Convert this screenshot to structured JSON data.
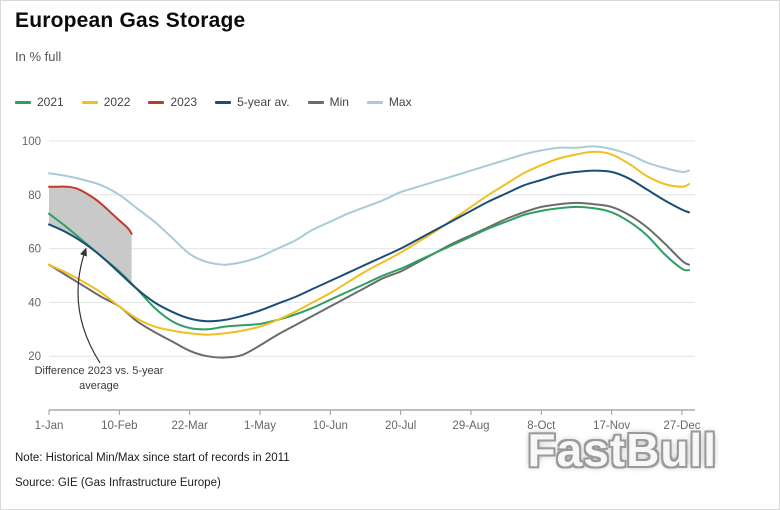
{
  "page": {
    "title": "European Gas Storage",
    "subtitle": "In % full"
  },
  "notes": {
    "note": "Note: Historical Min/Max since start of records in 2011",
    "source": "Source: GIE (Gas Infrastructure Europe)"
  },
  "watermark": "FastBull",
  "chart_data": {
    "type": "line",
    "title": "European Gas Storage",
    "subtitle": "In % full",
    "x_unit": "day_of_year",
    "xlim": [
      1,
      365
    ],
    "ylim": [
      0,
      100
    ],
    "grid": "horizontal",
    "legend_position": "top",
    "y_ticks": [
      20,
      40,
      60,
      80,
      100
    ],
    "x_ticks": [
      {
        "day": 1,
        "label": "1-Jan"
      },
      {
        "day": 41,
        "label": "10-Feb"
      },
      {
        "day": 81,
        "label": "22-Mar"
      },
      {
        "day": 121,
        "label": "1-May"
      },
      {
        "day": 161,
        "label": "10-Jun"
      },
      {
        "day": 201,
        "label": "20-Jul"
      },
      {
        "day": 241,
        "label": "29-Aug"
      },
      {
        "day": 281,
        "label": "8-Oct"
      },
      {
        "day": 321,
        "label": "17-Nov"
      },
      {
        "day": 361,
        "label": "27-Dec"
      }
    ],
    "series": [
      {
        "name": "2021",
        "color": "#2f9e62",
        "x": [
          1,
          11,
          21,
          31,
          41,
          51,
          61,
          71,
          81,
          91,
          101,
          111,
          121,
          131,
          141,
          151,
          161,
          171,
          181,
          191,
          201,
          211,
          221,
          231,
          241,
          251,
          261,
          271,
          281,
          291,
          301,
          311,
          321,
          331,
          341,
          351,
          361,
          365
        ],
        "y": [
          73,
          68,
          62.5,
          57,
          51.5,
          45,
          38,
          33,
          30.5,
          30,
          31,
          31.5,
          32,
          33.5,
          35.5,
          38,
          41,
          44,
          47,
          50,
          52.5,
          55.5,
          58.5,
          61.5,
          64.5,
          67.5,
          70,
          72.5,
          74,
          75,
          75.5,
          75,
          73.5,
          70,
          65,
          58,
          52.5,
          52
        ]
      },
      {
        "name": "2022",
        "color": "#f0c020",
        "x": [
          1,
          11,
          21,
          31,
          41,
          51,
          61,
          71,
          81,
          91,
          101,
          111,
          121,
          131,
          141,
          151,
          161,
          171,
          181,
          191,
          201,
          211,
          221,
          231,
          241,
          251,
          261,
          271,
          281,
          291,
          301,
          311,
          321,
          331,
          341,
          351,
          361,
          365
        ],
        "y": [
          54,
          51,
          47.5,
          43.5,
          38.5,
          34,
          31,
          29.5,
          28.5,
          28,
          28.5,
          29.5,
          31,
          33.5,
          36.5,
          40,
          43.5,
          47.5,
          51.5,
          55,
          58.5,
          62.5,
          66.5,
          71,
          75.5,
          80,
          84,
          88,
          91,
          93.5,
          95,
          96,
          95,
          91.5,
          87,
          84,
          83,
          84
        ]
      },
      {
        "name": "2023",
        "color": "#c0392b",
        "x": [
          1,
          6,
          11,
          16,
          21,
          26,
          31,
          36,
          41,
          46,
          48
        ],
        "y": [
          83,
          83,
          83,
          82.5,
          81,
          79,
          76.5,
          73.5,
          70.5,
          67.5,
          65.5
        ]
      },
      {
        "name": "5-year av.",
        "color": "#1a4e76",
        "x": [
          1,
          11,
          21,
          31,
          41,
          51,
          61,
          71,
          81,
          91,
          101,
          111,
          121,
          131,
          141,
          151,
          161,
          171,
          181,
          191,
          201,
          211,
          221,
          231,
          241,
          251,
          261,
          271,
          281,
          291,
          301,
          311,
          321,
          331,
          341,
          351,
          361,
          365
        ],
        "y": [
          69,
          66,
          62,
          57,
          51,
          45,
          40,
          36.5,
          34,
          33,
          33.5,
          35,
          37,
          39.5,
          42,
          45,
          48,
          51,
          54,
          57,
          60,
          63.5,
          67,
          70.5,
          74,
          77.5,
          80.5,
          83.5,
          85.5,
          87.5,
          88.5,
          89,
          88.5,
          86,
          82,
          78,
          74.5,
          73.5
        ]
      },
      {
        "name": "Min",
        "color": "#6b6b6b",
        "x": [
          1,
          11,
          21,
          31,
          41,
          51,
          61,
          71,
          81,
          91,
          101,
          111,
          121,
          131,
          141,
          151,
          161,
          171,
          181,
          191,
          201,
          211,
          221,
          231,
          241,
          251,
          261,
          271,
          281,
          291,
          301,
          311,
          321,
          331,
          341,
          351,
          361,
          365
        ],
        "y": [
          54,
          50,
          46,
          42,
          38.5,
          33,
          29,
          25.5,
          22,
          20,
          19.5,
          20.5,
          24,
          28,
          31.5,
          35,
          38.5,
          42,
          45.5,
          49,
          51.5,
          55,
          58.5,
          62,
          65,
          68,
          71,
          73.5,
          75.5,
          76.5,
          77,
          76.5,
          75.5,
          72.5,
          68,
          62,
          55.5,
          54
        ]
      },
      {
        "name": "Max",
        "color": "#a8ccd7",
        "x": [
          1,
          11,
          21,
          31,
          41,
          51,
          61,
          71,
          81,
          91,
          101,
          111,
          121,
          131,
          141,
          151,
          161,
          171,
          181,
          191,
          201,
          211,
          221,
          231,
          241,
          251,
          261,
          271,
          281,
          291,
          301,
          311,
          321,
          331,
          341,
          351,
          361,
          365
        ],
        "y": [
          88,
          87,
          85.5,
          83.5,
          80,
          75,
          70,
          64,
          58,
          55,
          54,
          55,
          57,
          60,
          63,
          67,
          70,
          73,
          75.5,
          78,
          81,
          83,
          85,
          87,
          89,
          91,
          93,
          95,
          96.5,
          97.5,
          97.5,
          98,
          97,
          95,
          92,
          90,
          88.5,
          89
        ]
      }
    ],
    "draw_order": [
      "Max",
      "Min",
      "2021",
      "2022",
      "5-year av.",
      "2023"
    ],
    "shaded_difference": {
      "between": [
        "2023",
        "5-year av."
      ],
      "fill": "#c6c6c6"
    },
    "annotation": {
      "line1": "Difference 2023 vs. 5-year",
      "line2": "average"
    }
  }
}
